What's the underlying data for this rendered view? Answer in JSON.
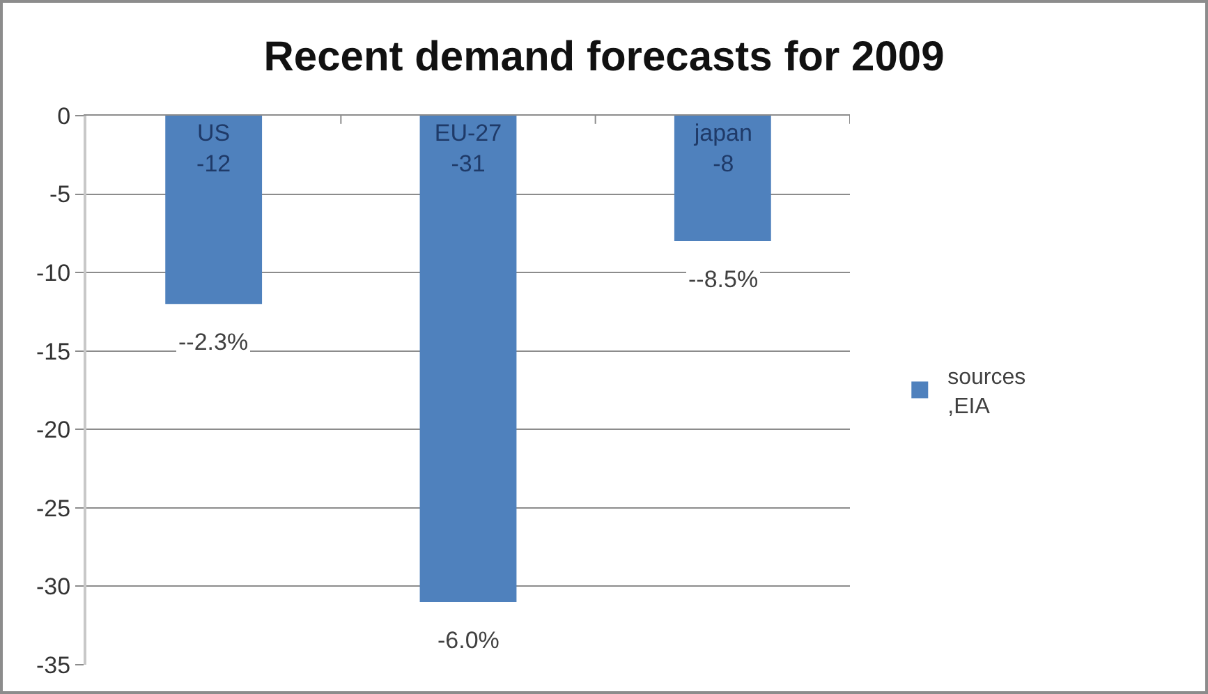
{
  "chart_data": {
    "type": "bar",
    "title": "Recent demand forecasts for 2009",
    "categories": [
      "US",
      "EU-27",
      "japan"
    ],
    "series": [
      {
        "name": "sources ,EIA",
        "color": "#4f81bd",
        "values": [
          -12,
          -31,
          -8
        ]
      }
    ],
    "ylim": [
      -35,
      0
    ],
    "yticks": [
      0,
      -5,
      -10,
      -15,
      -20,
      -25,
      -30,
      -35
    ],
    "grid": "y",
    "legend": "right",
    "tick_labels": "y",
    "data_labels": true,
    "annotations": [
      {
        "text": "--2.3%",
        "x": "US",
        "y": -12
      },
      {
        "text": "-6.0%",
        "x": "EU-27",
        "y": -31
      },
      {
        "text": "--8.5%",
        "x": "japan",
        "y": -8
      }
    ]
  }
}
